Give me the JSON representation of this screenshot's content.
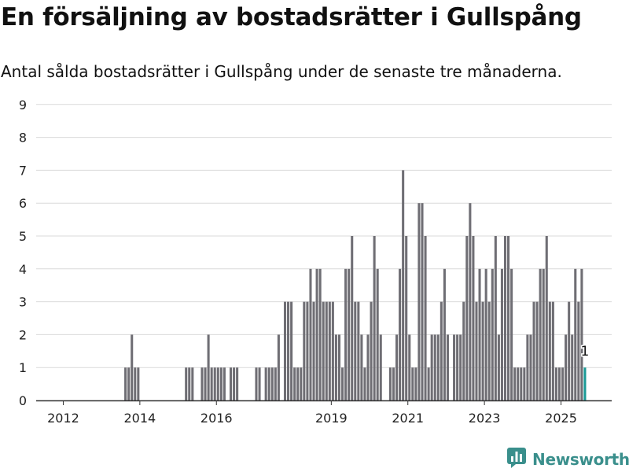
{
  "title": "En försäljning av bostadsrätter i Gullspång",
  "subtitle": "Antal sålda bostadsrätter i Gullspång under de senaste tre månaderna.",
  "brand": {
    "name": "Newsworthy",
    "logo_icon": "chart-bubble-icon",
    "color": "#3a8f8c"
  },
  "colors": {
    "bar": "#6f6e74",
    "highlight": "#1a9a96",
    "grid": "#d9d9d9",
    "axis": "#333333"
  },
  "chart_data": {
    "type": "bar",
    "title": "En försäljning av bostadsrätter i Gullspång",
    "subtitle": "Antal sålda bostadsrätter i Gullspång under de senaste tre månaderna.",
    "xlabel": "",
    "ylabel": "",
    "x_unit": "month",
    "ylim": [
      0,
      9
    ],
    "y_ticks": [
      0,
      1,
      2,
      3,
      4,
      5,
      6,
      7,
      8,
      9
    ],
    "x_ticks": [
      "2012",
      "2014",
      "2016",
      "2019",
      "2021",
      "2023",
      "2025"
    ],
    "grid": true,
    "legend": "none",
    "series": [
      {
        "points": [
          [
            "2013-08",
            1
          ],
          [
            "2013-09",
            1
          ],
          [
            "2013-10",
            2
          ],
          [
            "2013-11",
            1
          ],
          [
            "2013-12",
            1
          ],
          [
            "2015-03",
            1
          ],
          [
            "2015-04",
            1
          ],
          [
            "2015-05",
            1
          ],
          [
            "2015-08",
            1
          ],
          [
            "2015-09",
            1
          ],
          [
            "2015-10",
            2
          ],
          [
            "2015-11",
            1
          ],
          [
            "2015-12",
            1
          ],
          [
            "2016-01",
            1
          ],
          [
            "2016-02",
            1
          ],
          [
            "2016-03",
            1
          ],
          [
            "2016-05",
            1
          ],
          [
            "2016-06",
            1
          ],
          [
            "2016-07",
            1
          ],
          [
            "2017-01",
            1
          ],
          [
            "2017-02",
            1
          ],
          [
            "2017-04",
            1
          ],
          [
            "2017-05",
            1
          ],
          [
            "2017-06",
            1
          ],
          [
            "2017-07",
            1
          ],
          [
            "2017-08",
            2
          ],
          [
            "2017-10",
            3
          ],
          [
            "2017-11",
            3
          ],
          [
            "2017-12",
            3
          ],
          [
            "2018-01",
            1
          ],
          [
            "2018-02",
            1
          ],
          [
            "2018-03",
            1
          ],
          [
            "2018-04",
            3
          ],
          [
            "2018-05",
            3
          ],
          [
            "2018-06",
            4
          ],
          [
            "2018-07",
            3
          ],
          [
            "2018-08",
            4
          ],
          [
            "2018-09",
            4
          ],
          [
            "2018-10",
            3
          ],
          [
            "2018-11",
            3
          ],
          [
            "2018-12",
            3
          ],
          [
            "2019-01",
            3
          ],
          [
            "2019-02",
            2
          ],
          [
            "2019-03",
            2
          ],
          [
            "2019-04",
            1
          ],
          [
            "2019-05",
            4
          ],
          [
            "2019-06",
            4
          ],
          [
            "2019-07",
            5
          ],
          [
            "2019-08",
            3
          ],
          [
            "2019-09",
            3
          ],
          [
            "2019-10",
            2
          ],
          [
            "2019-11",
            1
          ],
          [
            "2019-12",
            2
          ],
          [
            "2020-01",
            3
          ],
          [
            "2020-02",
            5
          ],
          [
            "2020-03",
            4
          ],
          [
            "2020-04",
            2
          ],
          [
            "2020-07",
            1
          ],
          [
            "2020-08",
            1
          ],
          [
            "2020-09",
            2
          ],
          [
            "2020-10",
            4
          ],
          [
            "2020-11",
            7
          ],
          [
            "2020-12",
            5
          ],
          [
            "2021-01",
            2
          ],
          [
            "2021-02",
            1
          ],
          [
            "2021-03",
            1
          ],
          [
            "2021-04",
            6
          ],
          [
            "2021-05",
            6
          ],
          [
            "2021-06",
            5
          ],
          [
            "2021-07",
            1
          ],
          [
            "2021-08",
            2
          ],
          [
            "2021-09",
            2
          ],
          [
            "2021-10",
            2
          ],
          [
            "2021-11",
            3
          ],
          [
            "2021-12",
            4
          ],
          [
            "2022-01",
            2
          ],
          [
            "2022-03",
            2
          ],
          [
            "2022-04",
            2
          ],
          [
            "2022-05",
            2
          ],
          [
            "2022-06",
            3
          ],
          [
            "2022-07",
            5
          ],
          [
            "2022-08",
            6
          ],
          [
            "2022-09",
            5
          ],
          [
            "2022-10",
            3
          ],
          [
            "2022-11",
            4
          ],
          [
            "2022-12",
            3
          ],
          [
            "2023-01",
            4
          ],
          [
            "2023-02",
            3
          ],
          [
            "2023-03",
            4
          ],
          [
            "2023-04",
            5
          ],
          [
            "2023-05",
            2
          ],
          [
            "2023-06",
            4
          ],
          [
            "2023-07",
            5
          ],
          [
            "2023-08",
            5
          ],
          [
            "2023-09",
            4
          ],
          [
            "2023-10",
            1
          ],
          [
            "2023-11",
            1
          ],
          [
            "2023-12",
            1
          ],
          [
            "2024-01",
            1
          ],
          [
            "2024-02",
            2
          ],
          [
            "2024-03",
            2
          ],
          [
            "2024-04",
            3
          ],
          [
            "2024-05",
            3
          ],
          [
            "2024-06",
            4
          ],
          [
            "2024-07",
            4
          ],
          [
            "2024-08",
            5
          ],
          [
            "2024-09",
            3
          ],
          [
            "2024-10",
            3
          ],
          [
            "2024-11",
            1
          ],
          [
            "2024-12",
            1
          ],
          [
            "2025-01",
            1
          ],
          [
            "2025-02",
            2
          ],
          [
            "2025-03",
            3
          ],
          [
            "2025-04",
            2
          ],
          [
            "2025-05",
            4
          ],
          [
            "2025-06",
            3
          ],
          [
            "2025-07",
            4
          ],
          [
            "2025-08",
            1
          ]
        ]
      }
    ],
    "highlight": {
      "x": "2025-08",
      "value": 1,
      "label": "1"
    }
  }
}
